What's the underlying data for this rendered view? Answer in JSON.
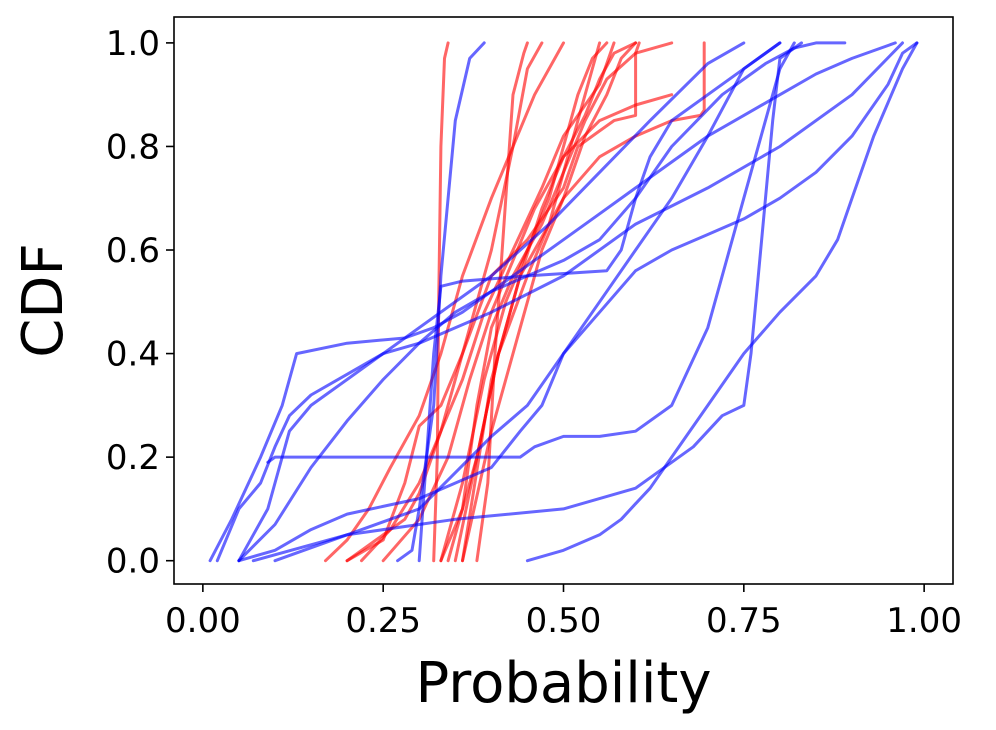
{
  "chart_data": {
    "type": "line",
    "title": "",
    "xlabel": "Probability",
    "ylabel": "CDF",
    "xlim": [
      -0.04,
      1.04
    ],
    "ylim": [
      -0.045,
      1.05
    ],
    "xticks": [
      0.0,
      0.25,
      0.5,
      0.75,
      1.0
    ],
    "xtick_labels": [
      "0.00",
      "0.25",
      "0.50",
      "0.75",
      "1.00"
    ],
    "yticks": [
      0.0,
      0.2,
      0.4,
      0.6,
      0.8,
      1.0
    ],
    "ytick_labels": [
      "0.0",
      "0.2",
      "0.4",
      "0.6",
      "0.8",
      "1.0"
    ],
    "grid": false,
    "legend": "none",
    "colors": {
      "red_group": "#ff0000",
      "blue_group": "#0000ff"
    },
    "series": [
      {
        "color": "#ff0000",
        "x": [
          0.32,
          0.325,
          0.327,
          0.33,
          0.335,
          0.34
        ],
        "y": [
          0.0,
          0.2,
          0.5,
          0.8,
          0.97,
          1.0
        ]
      },
      {
        "color": "#ff0000",
        "x": [
          0.38,
          0.395,
          0.405,
          0.42,
          0.43,
          0.445,
          0.45
        ],
        "y": [
          0.0,
          0.15,
          0.4,
          0.7,
          0.9,
          0.98,
          1.0
        ]
      },
      {
        "color": "#ff0000",
        "x": [
          0.33,
          0.36,
          0.38,
          0.4,
          0.43,
          0.47,
          0.5,
          0.53,
          0.55
        ],
        "y": [
          0.0,
          0.1,
          0.3,
          0.45,
          0.55,
          0.65,
          0.75,
          0.9,
          1.0
        ]
      },
      {
        "color": "#ff0000",
        "x": [
          0.33,
          0.36,
          0.39,
          0.42,
          0.45,
          0.48,
          0.5,
          0.52,
          0.54,
          0.56
        ],
        "y": [
          0.0,
          0.15,
          0.35,
          0.5,
          0.6,
          0.7,
          0.8,
          0.9,
          0.97,
          1.0
        ]
      },
      {
        "color": "#ff0000",
        "x": [
          0.34,
          0.38,
          0.41,
          0.44,
          0.47,
          0.5,
          0.53,
          0.55,
          0.57,
          0.6
        ],
        "y": [
          0.0,
          0.2,
          0.4,
          0.55,
          0.68,
          0.78,
          0.86,
          0.93,
          0.98,
          1.0
        ]
      },
      {
        "color": "#ff0000",
        "x": [
          0.36,
          0.4,
          0.44,
          0.47,
          0.5,
          0.53,
          0.56,
          0.58,
          0.6
        ],
        "y": [
          0.0,
          0.25,
          0.45,
          0.6,
          0.7,
          0.82,
          0.9,
          0.97,
          1.0
        ]
      },
      {
        "color": "#ff0000",
        "x": [
          0.35,
          0.38,
          0.41,
          0.45,
          0.48,
          0.5,
          0.53,
          0.56,
          0.6,
          0.65
        ],
        "y": [
          0.0,
          0.2,
          0.4,
          0.55,
          0.65,
          0.75,
          0.85,
          0.93,
          0.98,
          1.0
        ]
      },
      {
        "color": "#ff0000",
        "x": [
          0.2,
          0.24,
          0.28,
          0.3,
          0.33,
          0.36,
          0.4,
          0.43,
          0.45,
          0.47
        ],
        "y": [
          0.0,
          0.04,
          0.08,
          0.13,
          0.25,
          0.4,
          0.6,
          0.8,
          0.95,
          1.0
        ]
      },
      {
        "color": "#ff0000",
        "x": [
          0.17,
          0.2,
          0.23,
          0.26,
          0.3,
          0.33,
          0.36,
          0.4,
          0.43,
          0.46,
          0.5
        ],
        "y": [
          0.0,
          0.04,
          0.1,
          0.18,
          0.28,
          0.4,
          0.55,
          0.7,
          0.8,
          0.9,
          1.0
        ]
      },
      {
        "color": "#ff0000",
        "x": [
          0.22,
          0.26,
          0.3,
          0.33,
          0.36,
          0.39,
          0.43,
          0.47,
          0.5,
          0.55,
          0.57
        ],
        "y": [
          0.0,
          0.06,
          0.15,
          0.25,
          0.35,
          0.48,
          0.6,
          0.72,
          0.82,
          0.92,
          1.0
        ]
      },
      {
        "color": "#ff0000",
        "x": [
          0.25,
          0.3,
          0.34,
          0.37,
          0.4,
          0.43,
          0.46,
          0.5,
          0.55,
          0.6,
          0.65
        ],
        "y": [
          0.0,
          0.08,
          0.2,
          0.35,
          0.48,
          0.58,
          0.68,
          0.78,
          0.85,
          0.88,
          0.9
        ]
      },
      {
        "color": "#ff0000",
        "x": [
          0.2,
          0.25,
          0.28,
          0.3,
          0.33,
          0.36,
          0.4,
          0.45,
          0.5,
          0.52,
          0.55,
          0.57,
          0.6,
          0.6,
          0.605
        ],
        "y": [
          0.0,
          0.04,
          0.15,
          0.26,
          0.3,
          0.4,
          0.55,
          0.62,
          0.72,
          0.8,
          0.83,
          0.85,
          0.86,
          0.98,
          1.0
        ]
      },
      {
        "color": "#ff0000",
        "x": [
          0.36,
          0.4,
          0.44,
          0.5,
          0.55,
          0.6,
          0.65,
          0.69,
          0.695,
          0.695
        ],
        "y": [
          0.0,
          0.35,
          0.55,
          0.7,
          0.78,
          0.82,
          0.85,
          0.86,
          0.87,
          1.0
        ]
      },
      {
        "color": "#0000ff",
        "x": [
          0.27,
          0.29,
          0.3,
          0.32,
          0.33,
          0.35,
          0.37,
          0.39
        ],
        "y": [
          0.0,
          0.02,
          0.1,
          0.3,
          0.55,
          0.85,
          0.97,
          1.0
        ]
      },
      {
        "color": "#0000ff",
        "x": [
          0.01,
          0.04,
          0.08,
          0.11,
          0.13,
          0.2,
          0.28,
          0.32,
          0.36,
          0.4,
          0.45,
          0.5,
          0.55,
          0.6,
          0.65,
          0.72,
          0.78,
          0.82,
          0.85,
          0.89
        ],
        "y": [
          0.0,
          0.08,
          0.2,
          0.3,
          0.4,
          0.42,
          0.43,
          0.45,
          0.48,
          0.52,
          0.55,
          0.58,
          0.62,
          0.7,
          0.8,
          0.9,
          0.96,
          0.99,
          1.0,
          1.0
        ]
      },
      {
        "color": "#0000ff",
        "x": [
          0.02,
          0.05,
          0.08,
          0.1,
          0.12,
          0.15,
          0.2,
          0.25,
          0.3,
          0.4,
          0.48,
          0.55,
          0.62,
          0.7,
          0.75
        ],
        "y": [
          0.0,
          0.1,
          0.15,
          0.22,
          0.28,
          0.32,
          0.36,
          0.4,
          0.45,
          0.55,
          0.65,
          0.75,
          0.85,
          0.96,
          1.0
        ]
      },
      {
        "color": "#0000ff",
        "x": [
          0.05,
          0.1,
          0.15,
          0.2,
          0.25,
          0.3,
          0.35,
          0.4,
          0.45,
          0.5,
          0.55,
          0.6,
          0.65,
          0.7,
          0.75,
          0.8,
          0.85,
          0.9,
          0.96
        ],
        "y": [
          0.0,
          0.07,
          0.18,
          0.27,
          0.35,
          0.42,
          0.48,
          0.52,
          0.57,
          0.62,
          0.67,
          0.72,
          0.77,
          0.82,
          0.86,
          0.9,
          0.94,
          0.97,
          1.0
        ]
      },
      {
        "color": "#0000ff",
        "x": [
          0.05,
          0.07,
          0.09,
          0.1,
          0.12,
          0.15,
          0.2,
          0.25,
          0.3,
          0.35,
          0.4,
          0.5,
          0.6,
          0.7,
          0.8,
          0.9,
          0.97
        ],
        "y": [
          0.0,
          0.05,
          0.1,
          0.15,
          0.25,
          0.3,
          0.35,
          0.4,
          0.42,
          0.45,
          0.48,
          0.55,
          0.65,
          0.72,
          0.8,
          0.9,
          1.0
        ]
      },
      {
        "color": "#0000ff",
        "x": [
          0.1,
          0.2,
          0.3,
          0.35,
          0.4,
          0.45,
          0.5,
          0.55,
          0.6,
          0.65,
          0.7,
          0.75,
          0.8,
          0.85,
          0.9,
          0.95,
          0.97,
          0.99
        ],
        "y": [
          0.0,
          0.05,
          0.1,
          0.17,
          0.24,
          0.3,
          0.4,
          0.48,
          0.56,
          0.6,
          0.63,
          0.66,
          0.7,
          0.75,
          0.82,
          0.92,
          0.98,
          1.0
        ]
      },
      {
        "color": "#0000ff",
        "x": [
          0.05,
          0.1,
          0.15,
          0.2,
          0.3,
          0.4,
          0.44,
          0.47,
          0.5,
          0.55,
          0.6,
          0.65,
          0.7,
          0.75,
          0.8
        ],
        "y": [
          0.0,
          0.02,
          0.06,
          0.09,
          0.12,
          0.18,
          0.25,
          0.3,
          0.4,
          0.5,
          0.6,
          0.7,
          0.82,
          0.95,
          1.0
        ]
      },
      {
        "color": "#0000ff",
        "x": [
          0.09,
          0.1,
          0.3,
          0.44,
          0.46,
          0.5,
          0.55,
          0.6,
          0.65,
          0.7,
          0.75,
          0.8,
          0.82
        ],
        "y": [
          0.19,
          0.2,
          0.2,
          0.2,
          0.22,
          0.24,
          0.24,
          0.25,
          0.3,
          0.45,
          0.7,
          0.95,
          1.0
        ]
      },
      {
        "color": "#0000ff",
        "x": [
          0.3,
          0.31,
          0.32,
          0.33,
          0.36,
          0.45,
          0.56,
          0.58,
          0.6,
          0.62,
          0.65,
          0.7,
          0.75,
          0.8
        ],
        "y": [
          0.0,
          0.2,
          0.4,
          0.53,
          0.54,
          0.55,
          0.56,
          0.6,
          0.7,
          0.78,
          0.85,
          0.9,
          0.95,
          1.0
        ]
      },
      {
        "color": "#0000ff",
        "x": [
          0.45,
          0.5,
          0.55,
          0.58,
          0.6,
          0.62,
          0.65,
          0.7,
          0.75,
          0.8,
          0.85,
          0.88,
          0.9,
          0.93,
          0.97,
          0.99
        ],
        "y": [
          0.0,
          0.02,
          0.05,
          0.08,
          0.11,
          0.14,
          0.2,
          0.3,
          0.4,
          0.48,
          0.55,
          0.62,
          0.7,
          0.82,
          0.95,
          1.0
        ]
      },
      {
        "color": "#0000ff",
        "x": [
          0.07,
          0.2,
          0.35,
          0.5,
          0.6,
          0.68,
          0.72,
          0.75,
          0.76,
          0.77,
          0.78,
          0.79,
          0.8,
          0.83
        ],
        "y": [
          0.0,
          0.05,
          0.08,
          0.1,
          0.14,
          0.22,
          0.28,
          0.3,
          0.4,
          0.55,
          0.7,
          0.85,
          0.97,
          1.0
        ]
      }
    ]
  }
}
